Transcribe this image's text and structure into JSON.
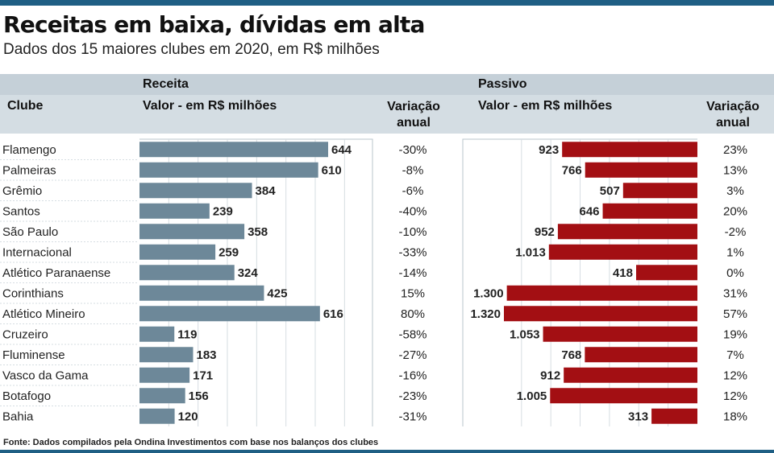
{
  "title": "Receitas em baixa, dívidas em alta",
  "subtitle": "Dados dos 15 maiores clubes em 2020, em R$ milhões",
  "headers": {
    "club": "Clube",
    "receita_group": "Receita",
    "receita_value": "Valor - em R$ milhões",
    "variation": "Variação anual",
    "passivo_group": "Passivo",
    "passivo_value": "Valor - em R$ milhões"
  },
  "source": "Fonte: Dados compilados pela Ondina Investimentos com base nos balanços dos clubes",
  "colors": {
    "receita": "#6d8899",
    "passivo": "#a30f13",
    "header": "#d4dde3",
    "accent": "#1f5f84"
  },
  "chart_data": {
    "type": "bar",
    "categories": [
      "Flamengo",
      "Palmeiras",
      "Grêmio",
      "Santos",
      "São Paulo",
      "Internacional",
      "Atlético Paranaense",
      "Corinthians",
      "Atlético Mineiro",
      "Cruzeiro",
      "Fluminense",
      "Vasco da Gama",
      "Botafogo",
      "Bahia"
    ],
    "series": [
      {
        "name": "Receita",
        "values": [
          644,
          610,
          384,
          239,
          358,
          259,
          324,
          425,
          616,
          119,
          183,
          171,
          156,
          120
        ],
        "labels": [
          "644",
          "610",
          "384",
          "239",
          "358",
          "259",
          "324",
          "425",
          "616",
          "119",
          "183",
          "171",
          "156",
          "120"
        ],
        "variation": [
          "-30%",
          "-8%",
          "-6%",
          "-40%",
          "-10%",
          "-33%",
          "-14%",
          "15%",
          "80%",
          "-58%",
          "-27%",
          "-16%",
          "-23%",
          "-31%"
        ]
      },
      {
        "name": "Passivo",
        "values": [
          923,
          766,
          507,
          646,
          952,
          1013,
          418,
          1300,
          1320,
          1053,
          768,
          912,
          1005,
          313
        ],
        "labels": [
          "923",
          "766",
          "507",
          "646",
          "952",
          "1.013",
          "418",
          "1.300",
          "1.320",
          "1.053",
          "768",
          "912",
          "1.005",
          "313"
        ],
        "variation": [
          "23%",
          "13%",
          "3%",
          "20%",
          "-2%",
          "1%",
          "0%",
          "31%",
          "57%",
          "19%",
          "7%",
          "12%",
          "12%",
          "18%"
        ]
      }
    ]
  }
}
